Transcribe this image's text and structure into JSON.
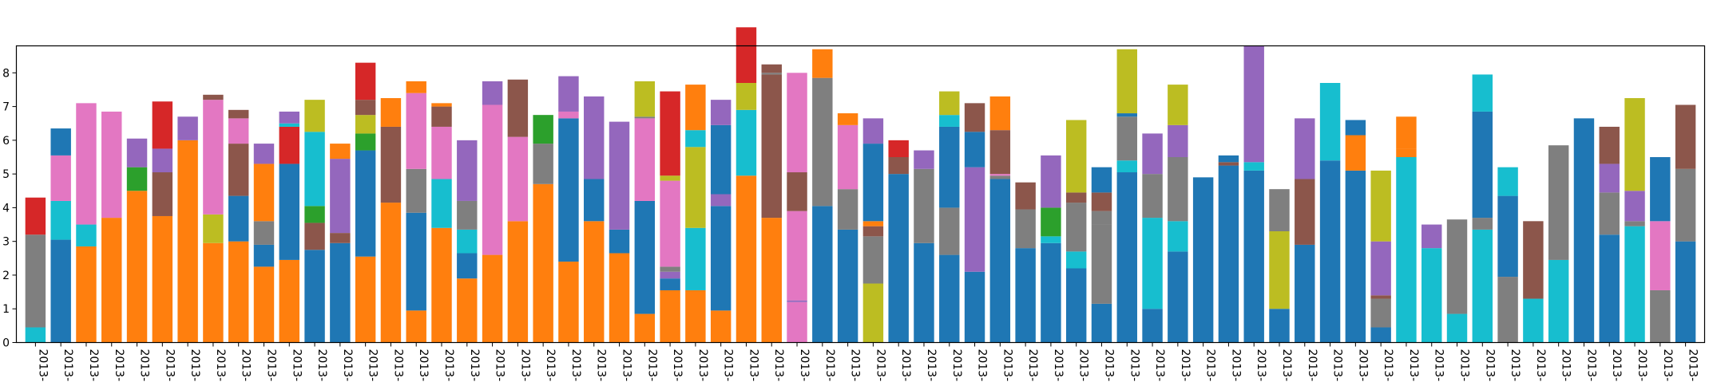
{
  "chart_data": {
    "type": "bar",
    "stacked": true,
    "title": "",
    "xlabel": "",
    "ylabel": "",
    "ylim": [
      0,
      8.8
    ],
    "yticks": [
      0,
      1,
      2,
      3,
      4,
      5,
      6,
      7,
      8
    ],
    "grid": false,
    "legend": "none",
    "colors": {
      "blue": "#1f77b4",
      "orange": "#ff7f0e",
      "green": "#2ca02c",
      "red": "#d62728",
      "purple": "#9467bd",
      "brown": "#8c564b",
      "pink": "#e377c2",
      "gray": "#7f7f7f",
      "olive": "#bcbd22",
      "cyan": "#17becf"
    },
    "categories": [
      "2013-",
      "2013-",
      "2013-",
      "2013-",
      "2013-",
      "2013-",
      "2013-",
      "2013-",
      "2013-",
      "2013-",
      "2013-",
      "2013-",
      "2013-",
      "2013-",
      "2013-",
      "2013-",
      "2013-",
      "2013-",
      "2013-",
      "2013-",
      "2013-",
      "2013-",
      "2013-",
      "2013-",
      "2013-",
      "2013-",
      "2013-",
      "2013-",
      "2013-",
      "2013-",
      "2013-",
      "2013-",
      "2013-",
      "2013-",
      "2013-",
      "2013-",
      "2013-",
      "2013-",
      "2013-",
      "2013-",
      "2013-",
      "2013-",
      "2013-",
      "2013-",
      "2013-",
      "2013-",
      "2013-",
      "2013-",
      "2013-",
      "2013-",
      "2013-",
      "2013-",
      "2013-",
      "2013-",
      "2013-",
      "2013-",
      "2013-",
      "2013-",
      "2013-",
      "2013-",
      "2013-",
      "2013-",
      "2013-",
      "2013-",
      "2013-",
      "2013-"
    ],
    "stacks": [
      [
        [
          "cyan",
          0.45
        ],
        [
          "gray",
          2.75
        ],
        [
          "red",
          1.1
        ]
      ],
      [
        [
          "blue",
          3.05
        ],
        [
          "cyan",
          1.15
        ],
        [
          "pink",
          1.35
        ],
        [
          "blue",
          0.8
        ]
      ],
      [
        [
          "orange",
          2.85
        ],
        [
          "cyan",
          0.65
        ],
        [
          "pink",
          3.6
        ]
      ],
      [
        [
          "orange",
          3.7
        ],
        [
          "pink",
          3.15
        ]
      ],
      [
        [
          "orange",
          4.5
        ],
        [
          "green",
          0.7
        ],
        [
          "purple",
          0.85
        ]
      ],
      [
        [
          "orange",
          3.75
        ],
        [
          "brown",
          1.3
        ],
        [
          "purple",
          0.7
        ],
        [
          "red",
          1.4
        ]
      ],
      [
        [
          "orange",
          6.0
        ],
        [
          "purple",
          0.7
        ]
      ],
      [
        [
          "orange",
          2.95
        ],
        [
          "olive",
          0.85
        ],
        [
          "pink",
          3.4
        ],
        [
          "brown",
          0.15
        ]
      ],
      [
        [
          "orange",
          3.0
        ],
        [
          "blue",
          1.35
        ],
        [
          "brown",
          1.55
        ],
        [
          "pink",
          0.75
        ],
        [
          "brown",
          0.25
        ]
      ],
      [
        [
          "orange",
          2.25
        ],
        [
          "blue",
          0.65
        ],
        [
          "gray",
          0.7
        ],
        [
          "orange",
          1.7
        ],
        [
          "purple",
          0.6
        ]
      ],
      [
        [
          "orange",
          2.45
        ],
        [
          "blue",
          2.85
        ],
        [
          "red",
          1.1
        ],
        [
          "cyan",
          0.1
        ],
        [
          "purple",
          0.35
        ]
      ],
      [
        [
          "blue",
          2.75
        ],
        [
          "brown",
          0.8
        ],
        [
          "green",
          0.5
        ],
        [
          "cyan",
          2.2
        ],
        [
          "olive",
          0.95
        ]
      ],
      [
        [
          "blue",
          2.95
        ],
        [
          "brown",
          0.3
        ],
        [
          "purple",
          2.2
        ],
        [
          "orange",
          0.45
        ]
      ],
      [
        [
          "orange",
          2.55
        ],
        [
          "blue",
          3.15
        ],
        [
          "green",
          0.5
        ],
        [
          "olive",
          0.55
        ],
        [
          "brown",
          0.45
        ],
        [
          "red",
          1.1
        ]
      ],
      [
        [
          "orange",
          4.15
        ],
        [
          "brown",
          2.25
        ],
        [
          "orange",
          0.85
        ]
      ],
      [
        [
          "orange",
          0.95
        ],
        [
          "blue",
          2.9
        ],
        [
          "gray",
          1.3
        ],
        [
          "pink",
          2.25
        ],
        [
          "orange",
          0.35
        ]
      ],
      [
        [
          "orange",
          3.4
        ],
        [
          "cyan",
          1.45
        ],
        [
          "pink",
          1.55
        ],
        [
          "brown",
          0.6
        ],
        [
          "orange",
          0.1
        ]
      ],
      [
        [
          "orange",
          1.9
        ],
        [
          "blue",
          0.75
        ],
        [
          "cyan",
          0.7
        ],
        [
          "gray",
          0.85
        ],
        [
          "purple",
          1.8
        ]
      ],
      [
        [
          "orange",
          2.6
        ],
        [
          "pink",
          4.45
        ],
        [
          "purple",
          0.7
        ]
      ],
      [
        [
          "orange",
          3.6
        ],
        [
          "pink",
          2.5
        ],
        [
          "brown",
          1.7
        ]
      ],
      [
        [
          "orange",
          4.7
        ],
        [
          "gray",
          1.2
        ],
        [
          "green",
          0.85
        ]
      ],
      [
        [
          "orange",
          2.4
        ],
        [
          "blue",
          4.25
        ],
        [
          "pink",
          0.2
        ],
        [
          "purple",
          1.05
        ]
      ],
      [
        [
          "orange",
          3.6
        ],
        [
          "blue",
          1.25
        ],
        [
          "purple",
          2.45
        ]
      ],
      [
        [
          "orange",
          2.65
        ],
        [
          "blue",
          0.7
        ],
        [
          "purple",
          3.2
        ]
      ],
      [
        [
          "orange",
          0.85
        ],
        [
          "blue",
          3.35
        ],
        [
          "pink",
          2.45
        ],
        [
          "gray",
          0.05
        ],
        [
          "olive",
          1.05
        ]
      ],
      [
        [
          "orange",
          1.55
        ],
        [
          "blue",
          0.35
        ],
        [
          "purple",
          0.2
        ],
        [
          "gray",
          0.15
        ],
        [
          "pink",
          2.55
        ],
        [
          "olive",
          0.15
        ],
        [
          "red",
          2.5
        ]
      ],
      [
        [
          "orange",
          1.55
        ],
        [
          "cyan",
          1.85
        ],
        [
          "olive",
          2.4
        ],
        [
          "cyan",
          0.5
        ],
        [
          "orange",
          1.35
        ]
      ],
      [
        [
          "orange",
          0.95
        ],
        [
          "blue",
          3.1
        ],
        [
          "purple",
          0.35
        ],
        [
          "blue",
          2.05
        ],
        [
          "purple",
          0.75
        ]
      ],
      [
        [
          "orange",
          4.95
        ],
        [
          "cyan",
          1.95
        ],
        [
          "olive",
          0.8
        ],
        [
          "red",
          1.65
        ]
      ],
      [
        [
          "orange",
          3.7
        ],
        [
          "brown",
          4.25
        ],
        [
          "gray",
          0.05
        ],
        [
          "brown",
          0.25
        ]
      ],
      [
        [
          "pink",
          1.2
        ],
        [
          "purple",
          0.05
        ],
        [
          "pink",
          2.65
        ],
        [
          "brown",
          1.15
        ],
        [
          "pink",
          2.95
        ]
      ],
      [
        [
          "blue",
          4.05
        ],
        [
          "gray",
          3.8
        ],
        [
          "orange",
          0.85
        ]
      ],
      [
        [
          "blue",
          3.35
        ],
        [
          "gray",
          1.2
        ],
        [
          "pink",
          1.9
        ],
        [
          "orange",
          0.35
        ]
      ],
      [
        [
          "olive",
          1.75
        ],
        [
          "gray",
          1.4
        ],
        [
          "brown",
          0.3
        ],
        [
          "orange",
          0.15
        ],
        [
          "blue",
          2.3
        ],
        [
          "purple",
          0.75
        ]
      ],
      [
        [
          "blue",
          5.0
        ],
        [
          "brown",
          0.5
        ],
        [
          "red",
          0.5
        ]
      ],
      [
        [
          "blue",
          2.95
        ],
        [
          "gray",
          2.2
        ],
        [
          "purple",
          0.55
        ]
      ],
      [
        [
          "blue",
          2.6
        ],
        [
          "gray",
          1.4
        ],
        [
          "blue",
          2.4
        ],
        [
          "cyan",
          0.35
        ],
        [
          "olive",
          0.7
        ]
      ],
      [
        [
          "blue",
          2.1
        ],
        [
          "purple",
          3.1
        ],
        [
          "blue",
          1.05
        ],
        [
          "brown",
          0.85
        ]
      ],
      [
        [
          "blue",
          4.85
        ],
        [
          "gray",
          0.1
        ],
        [
          "pink",
          0.05
        ],
        [
          "brown",
          1.3
        ],
        [
          "orange",
          1.0
        ]
      ],
      [
        [
          "blue",
          2.8
        ],
        [
          "gray",
          1.15
        ],
        [
          "brown",
          0.8
        ]
      ],
      [
        [
          "blue",
          2.95
        ],
        [
          "cyan",
          0.2
        ],
        [
          "green",
          0.85
        ],
        [
          "purple",
          1.55
        ]
      ],
      [
        [
          "blue",
          2.2
        ],
        [
          "cyan",
          0.5
        ],
        [
          "gray",
          1.45
        ],
        [
          "brown",
          0.3
        ],
        [
          "olive",
          2.15
        ]
      ],
      [
        [
          "blue",
          1.15
        ],
        [
          "gray",
          2.35
        ],
        [
          "gray",
          0.4
        ],
        [
          "brown",
          0.55
        ],
        [
          "blue",
          0.75
        ]
      ],
      [
        [
          "blue",
          5.05
        ],
        [
          "cyan",
          0.35
        ],
        [
          "gray",
          1.3
        ],
        [
          "blue",
          0.1
        ],
        [
          "olive",
          1.9
        ]
      ],
      [
        [
          "blue",
          1.0
        ],
        [
          "cyan",
          2.7
        ],
        [
          "gray",
          1.3
        ],
        [
          "purple",
          1.2
        ]
      ],
      [
        [
          "blue",
          2.7
        ],
        [
          "cyan",
          0.9
        ],
        [
          "gray",
          1.9
        ],
        [
          "purple",
          0.95
        ],
        [
          "olive",
          1.2
        ]
      ],
      [
        [
          "blue",
          4.9
        ]
      ],
      [
        [
          "blue",
          5.25
        ],
        [
          "brown",
          0.1
        ],
        [
          "blue",
          0.2
        ]
      ],
      [
        [
          "blue",
          5.1
        ],
        [
          "cyan",
          0.25
        ],
        [
          "purple",
          3.45
        ]
      ],
      [
        [
          "blue",
          1.0
        ],
        [
          "olive",
          2.3
        ],
        [
          "gray",
          1.25
        ]
      ],
      [
        [
          "blue",
          2.9
        ],
        [
          "brown",
          1.95
        ],
        [
          "purple",
          1.8
        ]
      ],
      [
        [
          "blue",
          5.4
        ],
        [
          "cyan",
          2.3
        ]
      ],
      [
        [
          "blue",
          5.1
        ],
        [
          "orange",
          1.05
        ],
        [
          "blue",
          0.45
        ]
      ],
      [
        [
          "blue",
          0.45
        ],
        [
          "gray",
          0.85
        ],
        [
          "brown",
          0.1
        ],
        [
          "purple",
          1.6
        ],
        [
          "olive",
          2.1
        ]
      ],
      [
        [
          "cyan",
          5.5
        ],
        [
          "orange",
          0.25
        ],
        [
          "orange",
          0.95
        ]
      ],
      [
        [
          "cyan",
          2.8
        ],
        [
          "purple",
          0.7
        ]
      ],
      [
        [
          "cyan",
          0.85
        ],
        [
          "gray",
          2.8
        ]
      ],
      [
        [
          "cyan",
          3.35
        ],
        [
          "gray",
          0.35
        ],
        [
          "blue",
          3.15
        ],
        [
          "cyan",
          1.1
        ]
      ],
      [
        [
          "gray",
          1.95
        ],
        [
          "blue",
          2.4
        ],
        [
          "cyan",
          0.85
        ]
      ],
      [
        [
          "cyan",
          1.3
        ],
        [
          "brown",
          2.3
        ]
      ],
      [
        [
          "cyan",
          2.45
        ],
        [
          "gray",
          3.4
        ]
      ],
      [
        [
          "blue",
          6.65
        ]
      ],
      [
        [
          "blue",
          3.2
        ],
        [
          "gray",
          1.25
        ],
        [
          "purple",
          0.85
        ],
        [
          "brown",
          1.1
        ]
      ],
      [
        [
          "cyan",
          3.45
        ],
        [
          "gray",
          0.15
        ],
        [
          "purple",
          0.9
        ],
        [
          "olive",
          2.75
        ]
      ],
      [
        [
          "gray",
          1.55
        ],
        [
          "pink",
          2.05
        ],
        [
          "blue",
          1.9
        ]
      ],
      [
        [
          "blue",
          3.0
        ],
        [
          "gray",
          2.15
        ],
        [
          "brown",
          1.9
        ]
      ]
    ]
  }
}
